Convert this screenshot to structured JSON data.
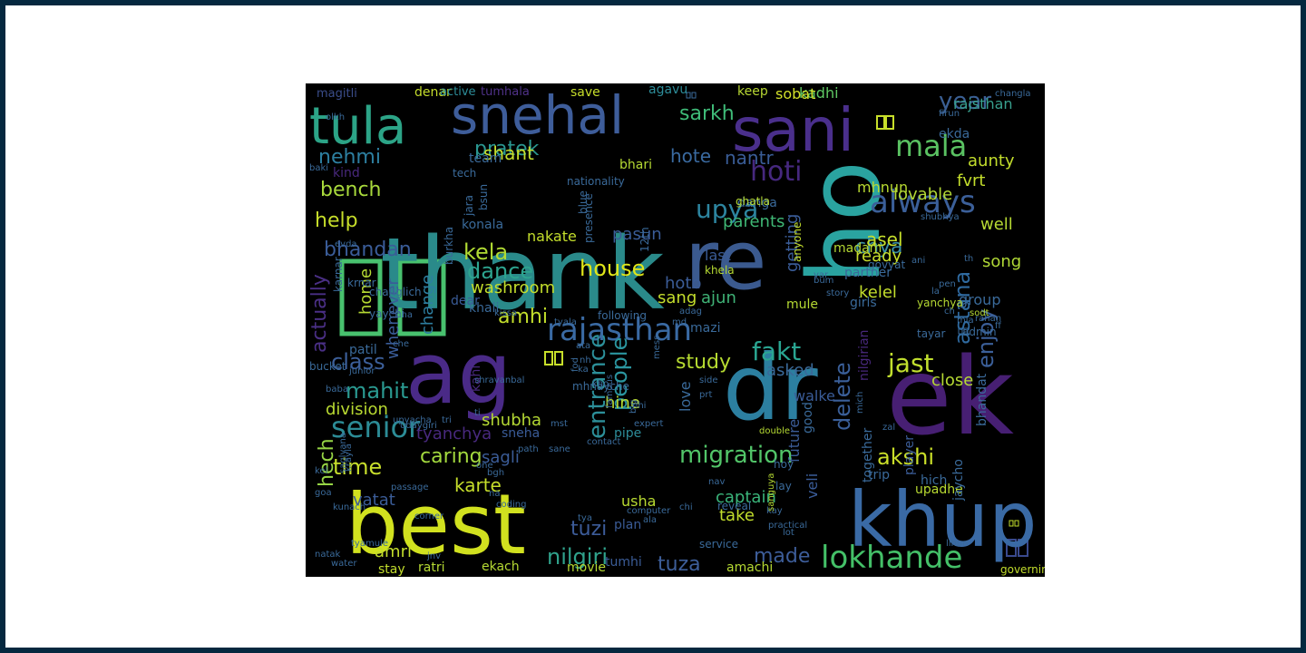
{
  "words": [
    {
      "text": "thank",
      "color": "#2a8a8a"
    },
    {
      "text": "re",
      "color": "#3b5a8f"
    },
    {
      "text": "ho",
      "color": "#2aa3a0"
    },
    {
      "text": "ag",
      "color": "#4a2a87"
    },
    {
      "text": "dr",
      "color": "#2c7fa0"
    },
    {
      "text": "ek",
      "color": "#471f73"
    },
    {
      "text": "best",
      "color": "#d1e11f"
    },
    {
      "text": "khup",
      "color": "#3a6aa5"
    },
    {
      "text": "sani",
      "color": "#4a2f8c"
    },
    {
      "text": "tula",
      "color": "#2ca487"
    },
    {
      "text": "snehal",
      "color": "#3e5d9a"
    },
    {
      "text": "rajasthan",
      "color": "#3a6aa3"
    },
    {
      "text": "lokhande",
      "color": "#44c068"
    },
    {
      "text": "senior",
      "color": "#2c8c96"
    },
    {
      "text": "migration",
      "color": "#52c569"
    },
    {
      "text": "always",
      "color": "#3b5f99"
    },
    {
      "text": "upya",
      "color": "#2d85a0"
    },
    {
      "text": "hoti",
      "color": "#46287e"
    },
    {
      "text": "mala",
      "color": "#5ac262"
    },
    {
      "text": "year",
      "color": "#3b6095"
    },
    {
      "text": "pratek",
      "color": "#2a9791"
    },
    {
      "text": "sarkh",
      "color": "#3fbb78"
    },
    {
      "text": "nehmi",
      "color": "#2d7fa0"
    },
    {
      "text": "bench",
      "color": "#a8d93c"
    },
    {
      "text": "help",
      "color": "#c6dd2a"
    },
    {
      "text": "bhandan",
      "color": "#3a5c98"
    },
    {
      "text": "kela",
      "color": "#b0da33"
    },
    {
      "text": "dance",
      "color": "#2da48f"
    },
    {
      "text": "house",
      "color": "#e0e619"
    },
    {
      "text": "entrance",
      "color": "#2c8f99"
    },
    {
      "text": "people",
      "color": "#2b96a0"
    },
    {
      "text": "amhi",
      "color": "#c3df2c"
    },
    {
      "text": "study",
      "color": "#b6db31"
    },
    {
      "text": "fakt",
      "color": "#2aa591"
    },
    {
      "text": "chya",
      "color": "#3b8ea5"
    },
    {
      "text": "jast",
      "color": "#c1df2e"
    },
    {
      "text": "astana",
      "color": "#2f6aa0"
    },
    {
      "text": "enjoy",
      "color": "#3b5f99"
    },
    {
      "text": "actually",
      "color": "#4a2f85"
    },
    {
      "text": "class",
      "color": "#3c5f9a"
    },
    {
      "text": "mahit",
      "color": "#2a9a91"
    },
    {
      "text": "time",
      "color": "#c8df2c"
    },
    {
      "text": "caring",
      "color": "#a3d93e"
    },
    {
      "text": "hech",
      "color": "#96d545"
    },
    {
      "text": "tuzi",
      "color": "#3c5b98"
    },
    {
      "text": "nilgiri",
      "color": "#30a28c"
    },
    {
      "text": "tuza",
      "color": "#3d5e99"
    },
    {
      "text": "made",
      "color": "#3d5d99"
    },
    {
      "text": "akshi",
      "color": "#cadf29"
    },
    {
      "text": "delete",
      "color": "#3a5f99"
    },
    {
      "text": "karte",
      "color": "#c6de2b"
    },
    {
      "text": "shant",
      "color": "#c4dd2c"
    },
    {
      "text": "nantr",
      "color": "#3a5d97"
    },
    {
      "text": "hote",
      "color": "#3a6aa0"
    },
    {
      "text": "kadhi",
      "color": "#5ec763"
    },
    {
      "text": "sobat",
      "color": "#d2e02a"
    },
    {
      "text": "keep",
      "color": "#b6d633"
    },
    {
      "text": "agavu",
      "color": "#2d8c99"
    },
    {
      "text": "save",
      "color": "#c6dd2b"
    },
    {
      "text": "denar",
      "color": "#c4dc2c"
    },
    {
      "text": "active",
      "color": "#2d8d99"
    },
    {
      "text": "tumhala",
      "color": "#4f3188"
    },
    {
      "text": "magitli",
      "color": "#3b4d8b"
    },
    {
      "text": "kind",
      "color": "#48287c"
    },
    {
      "text": "parents",
      "color": "#3fb775"
    },
    {
      "text": "asel",
      "color": "#c6df2b"
    },
    {
      "text": "washroom",
      "color": "#c3dd2b"
    },
    {
      "text": "ready",
      "color": "#c8de2b"
    },
    {
      "text": "well",
      "color": "#b6d933"
    },
    {
      "text": "song",
      "color": "#b0d836"
    },
    {
      "text": "group",
      "color": "#3a6a9a"
    },
    {
      "text": "pasun",
      "color": "#3a5c98"
    },
    {
      "text": "nakate",
      "color": "#c4de2c"
    },
    {
      "text": "sang",
      "color": "#c3dd2c"
    },
    {
      "text": "ajun",
      "color": "#3fb276"
    },
    {
      "text": "hoto",
      "color": "#3b5c97"
    },
    {
      "text": "last",
      "color": "#3a5b96"
    },
    {
      "text": "getting",
      "color": "#3a5c98"
    },
    {
      "text": "kelel",
      "color": "#c3de2c"
    },
    {
      "text": "mhnun",
      "color": "#b8da31"
    },
    {
      "text": "lovable",
      "color": "#b2d835"
    },
    {
      "text": "aunty",
      "color": "#c2dd2c"
    },
    {
      "text": "fvrt",
      "color": "#c4de2c"
    },
    {
      "text": "rajsthan",
      "color": "#38a08e"
    },
    {
      "text": "ekda",
      "color": "#3a6a9a"
    },
    {
      "text": "home",
      "color": "#b5d933"
    },
    {
      "text": "change",
      "color": "#2d7ea0"
    },
    {
      "text": "whenever",
      "color": "#3a5c98"
    },
    {
      "text": "division",
      "color": "#b8d931"
    },
    {
      "text": "tyanchya",
      "color": "#48297e"
    },
    {
      "text": "shubha",
      "color": "#b4d834"
    },
    {
      "text": "sagli",
      "color": "#3b5c97"
    },
    {
      "text": "hine",
      "color": "#b6d933"
    },
    {
      "text": "pipe",
      "color": "#2d8c99"
    },
    {
      "text": "usha",
      "color": "#b8da31"
    },
    {
      "text": "plan",
      "color": "#3a5b96"
    },
    {
      "text": "vatat",
      "color": "#3b5c97"
    },
    {
      "text": "captain",
      "color": "#3ab47a"
    },
    {
      "text": "take",
      "color": "#c2dd2c"
    },
    {
      "text": "veli",
      "color": "#3a5c98"
    },
    {
      "text": "future",
      "color": "#3b5c97"
    },
    {
      "text": "love",
      "color": "#3a6a9a"
    },
    {
      "text": "asked",
      "color": "#3a6a9a"
    },
    {
      "text": "walke",
      "color": "#3a5c98"
    },
    {
      "text": "close",
      "color": "#b5d933"
    },
    {
      "text": "upadhe",
      "color": "#b8da31"
    },
    {
      "text": "together",
      "color": "#3a6a9a"
    },
    {
      "text": "player",
      "color": "#3b5c97"
    },
    {
      "text": "nilgirian",
      "color": "#48287c"
    },
    {
      "text": "good",
      "color": "#3a6a9a"
    },
    {
      "text": "bhandat",
      "color": "#3a6a9a"
    },
    {
      "text": "trip",
      "color": "#3a6a9a"
    },
    {
      "text": "hich",
      "color": "#3a6a9a"
    },
    {
      "text": "jaycho",
      "color": "#3a6a9a"
    },
    {
      "text": "amri",
      "color": "#c2dd2c"
    },
    {
      "text": "stay",
      "color": "#c2dd2c"
    },
    {
      "text": "ratri",
      "color": "#b5d933"
    },
    {
      "text": "ekach",
      "color": "#b5d933"
    },
    {
      "text": "movie",
      "color": "#b5d933"
    },
    {
      "text": "tumhi",
      "color": "#3b5c97"
    },
    {
      "text": "amachi",
      "color": "#b5d933"
    },
    {
      "text": "governing",
      "color": "#c2dd2c"
    },
    {
      "text": "sneha",
      "color": "#3a5c98"
    },
    {
      "text": "kahi",
      "color": "#48287c"
    },
    {
      "text": "dear",
      "color": "#3a5c98"
    },
    {
      "text": "khali",
      "color": "#3a6a9a"
    },
    {
      "text": "patil",
      "color": "#3a6a9a"
    },
    {
      "text": "bucket",
      "color": "#3a6a9a"
    },
    {
      "text": "mazi",
      "color": "#3a6a9a"
    },
    {
      "text": "mule",
      "color": "#b5d933"
    },
    {
      "text": "girls",
      "color": "#3a6a9a"
    },
    {
      "text": "partner",
      "color": "#3a6a9a"
    },
    {
      "text": "madam",
      "color": "#b5d933"
    },
    {
      "text": "danga",
      "color": "#3a6a9a"
    },
    {
      "text": "bhari",
      "color": "#b5d933"
    },
    {
      "text": "team",
      "color": "#3a6a9a"
    },
    {
      "text": "tech",
      "color": "#3a6a9a"
    },
    {
      "text": "nationality",
      "color": "#3a6a9a"
    },
    {
      "text": "konala",
      "color": "#3a6a9a"
    },
    {
      "text": "jara",
      "color": "#3a6a9a"
    },
    {
      "text": "bsun",
      "color": "#3a6a9a"
    },
    {
      "text": "burkha",
      "color": "#3a6a9a"
    },
    {
      "text": "12th",
      "color": "#3a6a9a"
    },
    {
      "text": "blue",
      "color": "#3a6a9a"
    },
    {
      "text": "presence",
      "color": "#3a6a9a"
    },
    {
      "text": "mhnayche",
      "color": "#3a6a9a"
    },
    {
      "text": "following",
      "color": "#3a6a9a"
    },
    {
      "text": "khela",
      "color": "#b5d933"
    },
    {
      "text": "ghatla",
      "color": "#b5d933"
    },
    {
      "text": "anyone",
      "color": "#c2dd2c"
    },
    {
      "text": "govyat",
      "color": "#3a6a9a"
    },
    {
      "text": "yanchya",
      "color": "#b5d933"
    },
    {
      "text": "admin",
      "color": "#3a6a9a"
    },
    {
      "text": "tayar",
      "color": "#3a6a9a"
    },
    {
      "text": "firun",
      "color": "#3a6a9a"
    },
    {
      "text": "changla",
      "color": "#3a6a9a"
    },
    {
      "text": "krnar",
      "color": "#3a6a9a"
    },
    {
      "text": "yaychi",
      "color": "#3a6a9a"
    },
    {
      "text": "changlich",
      "color": "#3a6a9a"
    },
    {
      "text": "karnar",
      "color": "#3a6a9a"
    },
    {
      "text": "olkh",
      "color": "#3a6a9a"
    },
    {
      "text": "baki",
      "color": "#3a6a9a"
    },
    {
      "text": "evda",
      "color": "#3a6a9a"
    },
    {
      "text": "bum",
      "color": "#3a6a9a"
    },
    {
      "text": "ani",
      "color": "#3a6a9a"
    },
    {
      "text": "pen",
      "color": "#3a6a9a"
    },
    {
      "text": "sodt",
      "color": "#b5d933"
    },
    {
      "text": "double",
      "color": "#b5d933"
    },
    {
      "text": "md",
      "color": "#3a6a9a"
    },
    {
      "text": "prt",
      "color": "#3a6a9a"
    },
    {
      "text": "nav",
      "color": "#3a6a9a"
    },
    {
      "text": "reveal",
      "color": "#3a6a9a"
    },
    {
      "text": "mich",
      "color": "#3a6a9a"
    },
    {
      "text": "side",
      "color": "#3a6a9a"
    },
    {
      "text": "zal",
      "color": "#3a6a9a"
    },
    {
      "text": "hoy",
      "color": "#3a6a9a"
    },
    {
      "text": "lay",
      "color": "#3a6a9a"
    },
    {
      "text": "chi",
      "color": "#3a6a9a"
    },
    {
      "text": "service",
      "color": "#3a6a9a"
    },
    {
      "text": "lihun",
      "color": "#3a6a9a"
    },
    {
      "text": "kay",
      "color": "#3a6a9a"
    },
    {
      "text": "practical",
      "color": "#3a6a9a"
    },
    {
      "text": "lot",
      "color": "#3a6a9a"
    },
    {
      "text": "sanguya",
      "color": "#b5d933"
    },
    {
      "text": "tya",
      "color": "#3a6a9a"
    },
    {
      "text": "computer",
      "color": "#3a6a9a"
    },
    {
      "text": "ala",
      "color": "#3a6a9a"
    },
    {
      "text": "na",
      "color": "#3a6a9a"
    },
    {
      "text": "coding",
      "color": "#3a6a9a"
    },
    {
      "text": "bgh",
      "color": "#3a6a9a"
    },
    {
      "text": "one",
      "color": "#3a6a9a"
    },
    {
      "text": "contact",
      "color": "#3a6a9a"
    },
    {
      "text": "sane",
      "color": "#3a6a9a"
    },
    {
      "text": "path",
      "color": "#3a6a9a"
    },
    {
      "text": "expert",
      "color": "#3a6a9a"
    },
    {
      "text": "goa",
      "color": "#3a6a9a"
    },
    {
      "text": "natak",
      "color": "#3a6a9a"
    },
    {
      "text": "kunach",
      "color": "#3a6a9a"
    },
    {
      "text": "jnv",
      "color": "#3a6a9a"
    },
    {
      "text": "tyamule",
      "color": "#3a6a9a"
    },
    {
      "text": "water",
      "color": "#3a6a9a"
    },
    {
      "text": "corner",
      "color": "#3a6a9a"
    },
    {
      "text": "krayla",
      "color": "#3a6a9a"
    },
    {
      "text": "saglyana",
      "color": "#3a6a9a"
    },
    {
      "text": "baba",
      "color": "#3a6a9a"
    },
    {
      "text": "kel",
      "color": "#3a6a9a"
    },
    {
      "text": "junior",
      "color": "#3a6a9a"
    },
    {
      "text": "shravanbal",
      "color": "#3a6a9a"
    },
    {
      "text": "tri",
      "color": "#3a6a9a"
    },
    {
      "text": "ti",
      "color": "#3a6a9a"
    },
    {
      "text": "passage",
      "color": "#3a6a9a"
    },
    {
      "text": "udaygiri",
      "color": "#3a6a9a"
    },
    {
      "text": "upyacha",
      "color": "#3a6a9a"
    },
    {
      "text": "mst",
      "color": "#3a6a9a"
    },
    {
      "text": "big",
      "color": "#3a6a9a"
    },
    {
      "text": "mess",
      "color": "#3a6a9a"
    },
    {
      "text": "nhi",
      "color": "#3a6a9a"
    },
    {
      "text": "adag",
      "color": "#3a6a9a"
    },
    {
      "text": "cha",
      "color": "#3a6a9a"
    },
    {
      "text": "ka",
      "color": "#3a6a9a"
    },
    {
      "text": "che",
      "color": "#3a6a9a"
    },
    {
      "text": "kissa",
      "color": "#3a6a9a"
    },
    {
      "text": "tyala",
      "color": "#3a6a9a"
    },
    {
      "text": "fod",
      "color": "#3a6a9a"
    },
    {
      "text": "ata",
      "color": "#3a6a9a"
    },
    {
      "text": "nh",
      "color": "#3a6a9a"
    },
    {
      "text": "kho",
      "color": "#3a6a9a"
    },
    {
      "text": "famous",
      "color": "#3a6a9a"
    },
    {
      "text": "var",
      "color": "#3a6a9a"
    },
    {
      "text": "story",
      "color": "#3a6a9a"
    },
    {
      "text": "shubhya",
      "color": "#3a6a9a"
    },
    {
      "text": "th",
      "color": "#3a6a9a"
    },
    {
      "text": "la",
      "color": "#3a6a9a"
    },
    {
      "text": "ch",
      "color": "#3a6a9a"
    },
    {
      "text": "rahan",
      "color": "#3a6a9a"
    },
    {
      "text": "mla",
      "color": "#3a6a9a"
    },
    {
      "text": "ff",
      "color": "#3a6a9a"
    }
  ]
}
